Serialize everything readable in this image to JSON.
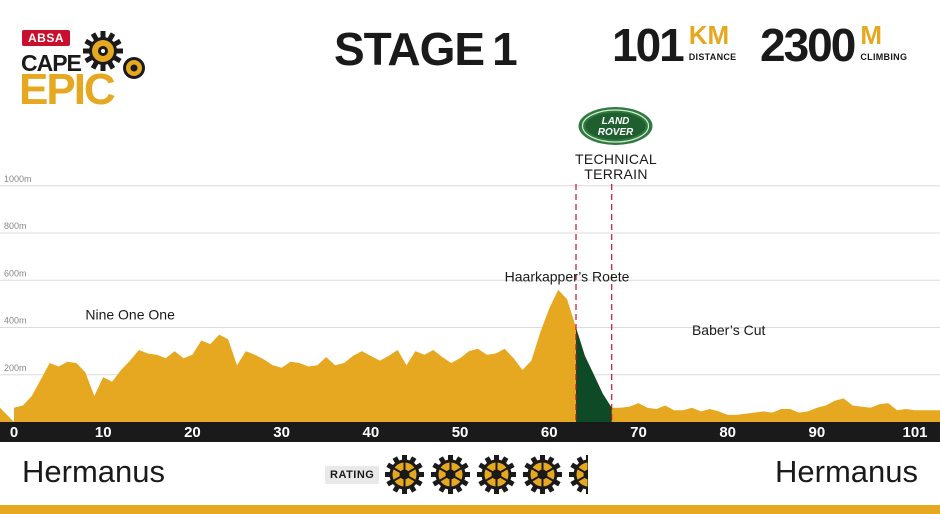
{
  "header": {
    "logo": {
      "brand": "ABSA",
      "line1": "CAPE",
      "line2": "EPIC"
    },
    "stage_label": "STAGE",
    "stage_number": "1",
    "distance": {
      "value": "101",
      "unit": "KM",
      "label": "DISTANCE"
    },
    "climbing": {
      "value": "2300",
      "unit": "M",
      "label": "CLIMBING"
    }
  },
  "sponsor": {
    "badge_line1": "LAND",
    "badge_line2": "ROVER",
    "label_line1": "TECHNICAL",
    "label_line2": "TERRAIN"
  },
  "footer": {
    "start": "Hermanus",
    "finish": "Hermanus",
    "rating_label": "RATING",
    "rating": 4.5,
    "rating_max": 5
  },
  "colors": {
    "profile": "#e6a820",
    "technical": "#0f4a27",
    "axis_band": "#1a1a1a",
    "grid": "#dcdcdc",
    "marker": "#c8102e",
    "brand_red": "#c8102e"
  },
  "chart_data": {
    "type": "area",
    "title": "",
    "xlabel": "",
    "ylabel": "",
    "xlim": [
      0,
      101
    ],
    "ylim": [
      0,
      1050
    ],
    "x_ticks": [
      0,
      10,
      20,
      30,
      40,
      50,
      60,
      70,
      80,
      90,
      101
    ],
    "y_ticks": [
      200,
      400,
      600,
      800,
      1000
    ],
    "y_tick_labels": [
      "200m",
      "400m",
      "600m",
      "800m",
      "1000m"
    ],
    "grid": true,
    "series": [
      {
        "x": [
          0,
          1,
          2,
          3,
          4,
          5,
          6,
          7,
          8,
          9,
          10,
          11,
          12,
          13,
          14,
          15,
          16,
          17,
          18,
          19,
          20,
          21,
          22,
          23,
          24,
          25,
          26,
          27,
          28,
          29,
          30,
          31,
          32,
          33,
          34,
          35,
          36,
          37,
          38,
          39,
          40,
          41,
          42,
          43,
          44,
          45,
          46,
          47,
          48,
          49,
          50,
          51,
          52,
          53,
          54,
          55,
          56,
          57,
          58,
          59,
          60,
          61,
          62,
          63,
          64,
          65,
          66,
          67,
          68,
          69,
          70,
          71,
          72,
          73,
          74,
          75,
          76,
          77,
          78,
          79,
          80,
          81,
          82,
          83,
          84,
          85,
          86,
          87,
          88,
          89,
          90,
          91,
          92,
          93,
          94,
          95,
          96,
          97,
          98,
          99,
          100,
          101
        ],
        "y": [
          60,
          70,
          110,
          180,
          250,
          235,
          255,
          250,
          210,
          110,
          190,
          170,
          220,
          260,
          305,
          290,
          285,
          270,
          300,
          270,
          285,
          345,
          330,
          370,
          350,
          240,
          300,
          285,
          265,
          240,
          230,
          255,
          250,
          235,
          240,
          275,
          240,
          250,
          280,
          300,
          280,
          260,
          280,
          305,
          240,
          300,
          285,
          305,
          275,
          250,
          270,
          300,
          310,
          285,
          290,
          310,
          270,
          220,
          260,
          380,
          480,
          560,
          520,
          400,
          280,
          200,
          120,
          60,
          60,
          65,
          80,
          60,
          55,
          70,
          50,
          50,
          60,
          45,
          55,
          45,
          30,
          30,
          35,
          40,
          45,
          40,
          55,
          55,
          40,
          45,
          60,
          70,
          90,
          100,
          70,
          65,
          60,
          75,
          80,
          50,
          55,
          50
        ]
      }
    ],
    "technical_terrain": {
      "x_start": 63,
      "x_end": 67
    },
    "annotations": [
      {
        "label": "Nine One One",
        "x": 8,
        "y": 400
      },
      {
        "label": "Haarkapper’s Roete",
        "x": 55,
        "y": 560
      },
      {
        "label": "Baber’s Cut",
        "x": 76,
        "y": 335
      }
    ]
  }
}
